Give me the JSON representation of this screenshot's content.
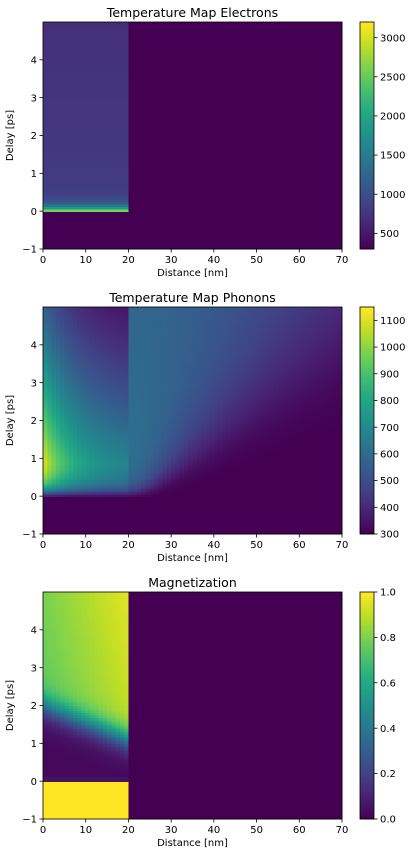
{
  "chart_data": [
    {
      "type": "heatmap",
      "title": "Temperature Map Electrons",
      "xlabel": "Distance [nm]",
      "ylabel": "Delay [ps]",
      "xlim": [
        0,
        70
      ],
      "ylim": [
        -1,
        5
      ],
      "xticks": [
        "0",
        "10",
        "20",
        "30",
        "40",
        "50",
        "60",
        "70"
      ],
      "yticks": [
        "−1",
        "0",
        "1",
        "2",
        "3",
        "4"
      ],
      "colorbar": {
        "range": [
          300,
          3200
        ],
        "ticks": [
          "500",
          "1000",
          "1500",
          "2000",
          "2500",
          "3000"
        ]
      },
      "field": {
        "baseline": 300,
        "regions": [
          {
            "x": [
              0,
              20
            ],
            "profile": "electron",
            "peak": 3150,
            "plateau": 820
          }
        ]
      }
    },
    {
      "type": "heatmap",
      "title": "Temperature Map Phonons",
      "xlabel": "Distance [nm]",
      "ylabel": "Delay [ps]",
      "xlim": [
        0,
        70
      ],
      "ylim": [
        -1,
        5
      ],
      "xticks": [
        "0",
        "10",
        "20",
        "30",
        "40",
        "50",
        "60",
        "70"
      ],
      "yticks": [
        "−1",
        "0",
        "1",
        "2",
        "3",
        "4"
      ],
      "colorbar": {
        "range": [
          300,
          1150
        ],
        "ticks": [
          "300",
          "400",
          "500",
          "600",
          "700",
          "800",
          "900",
          "1000",
          "1100"
        ]
      },
      "field": {
        "baseline": 300,
        "regions": [
          {
            "x": [
              0,
              70
            ],
            "profile": "phonon",
            "peak": 1130,
            "edge": 650
          }
        ]
      }
    },
    {
      "type": "heatmap",
      "title": "Magnetization",
      "xlabel": "Distance [nm]",
      "ylabel": "Delay [ps]",
      "xlim": [
        0,
        70
      ],
      "ylim": [
        -1,
        5
      ],
      "xticks": [
        "0",
        "10",
        "20",
        "30",
        "40",
        "50",
        "60",
        "70"
      ],
      "yticks": [
        "−1",
        "0",
        "1",
        "2",
        "3",
        "4"
      ],
      "colorbar": {
        "range": [
          0,
          1
        ],
        "ticks": [
          "0.0",
          "0.2",
          "0.4",
          "0.6",
          "0.8",
          "1.0"
        ]
      },
      "field": {
        "baseline": 0,
        "regions": [
          {
            "x": [
              0,
              20
            ],
            "profile": "magnetization",
            "before": 1.0,
            "min": 0.0,
            "recovered_left": 0.72,
            "recovered_right": 0.88
          }
        ]
      }
    }
  ]
}
